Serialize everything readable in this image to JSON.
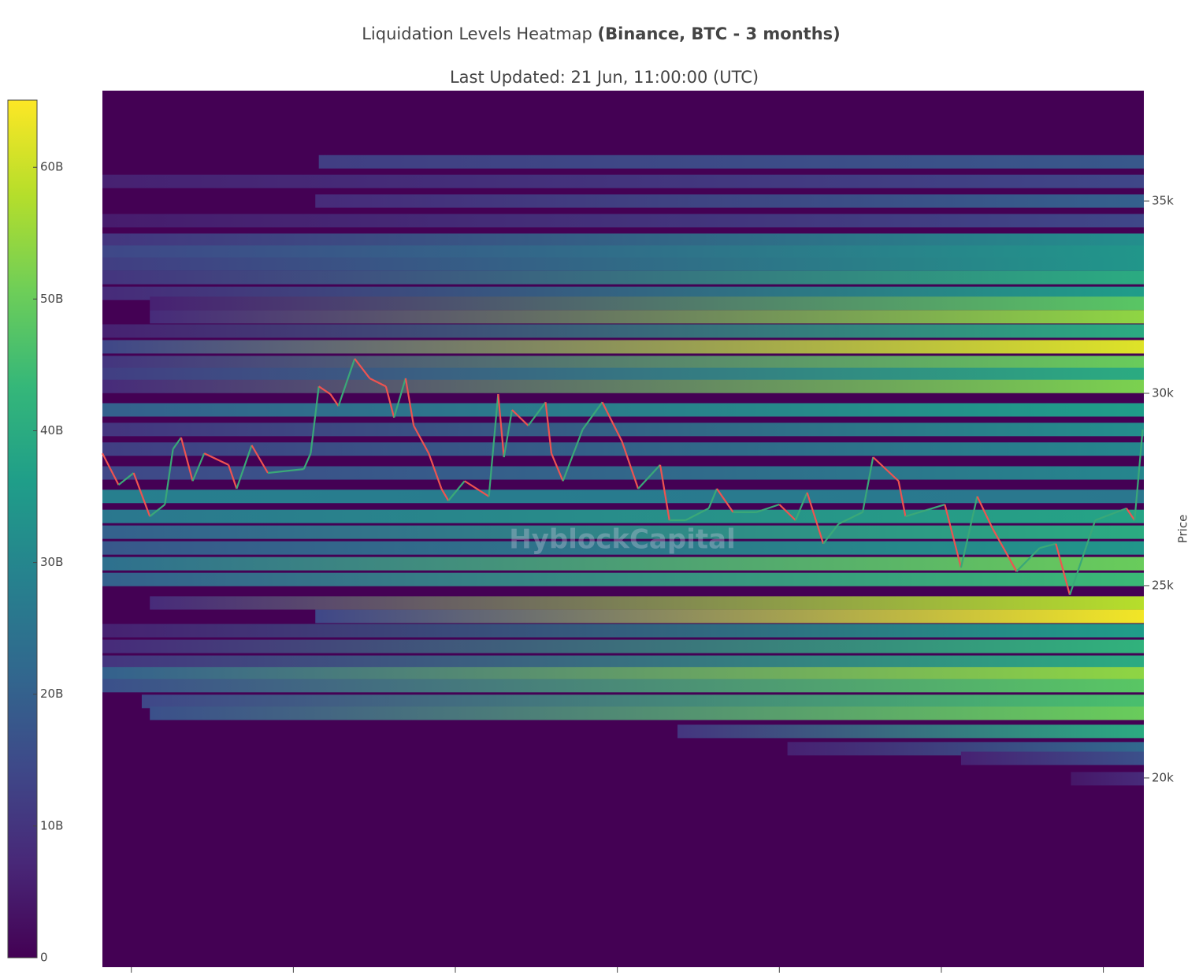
{
  "chart_data": {
    "type": "heatmap",
    "title": "Liquidation Levels Heatmap ",
    "title_bold": "(Binance, BTC - 3 months)",
    "subtitle": "Last Updated: 21 Jun, 11:00:00 (UTC)",
    "ylabel": "Price",
    "watermark": "HyblockCapital",
    "xlim": [
      0,
      90
    ],
    "xticks": [
      2.5,
      16.5,
      30.5,
      44.5,
      58.5,
      72.5,
      86.5
    ],
    "ylim": [
      15080,
      37870
    ],
    "yticks": [
      {
        "value": 20000,
        "label": "20k"
      },
      {
        "value": 25000,
        "label": "25k"
      },
      {
        "value": 30000,
        "label": "30k"
      },
      {
        "value": 35000,
        "label": "35k"
      }
    ],
    "clim": [
      0,
      65.1
    ],
    "cticks": [
      0,
      {
        "value": 10,
        "label": "10B"
      },
      {
        "value": 20,
        "label": "20B"
      },
      {
        "value": 30,
        "label": "30B"
      },
      {
        "value": 40,
        "label": "40B"
      },
      {
        "value": 50,
        "label": "50B"
      },
      {
        "value": 60,
        "label": "60B"
      }
    ],
    "bands": [
      {
        "price": 36020,
        "start": 18.7,
        "values": [
          12,
          18
        ]
      },
      {
        "price": 35510,
        "start": 0,
        "values": [
          6,
          14
        ]
      },
      {
        "price": 35000,
        "start": 18.4,
        "values": [
          8,
          20
        ]
      },
      {
        "price": 34490,
        "start": 0,
        "values": [
          5,
          14
        ]
      },
      {
        "price": 33980,
        "start": 0,
        "values": [
          10,
          32
        ]
      },
      {
        "price": 33670,
        "start": 0,
        "values": [
          14,
          34
        ]
      },
      {
        "price": 33360,
        "start": 0,
        "values": [
          12,
          34
        ]
      },
      {
        "price": 33010,
        "start": 0,
        "values": [
          10,
          40
        ]
      },
      {
        "price": 32600,
        "start": 0,
        "values": [
          8,
          36
        ]
      },
      {
        "price": 32340,
        "start": 4.1,
        "values": [
          6,
          48
        ]
      },
      {
        "price": 31990,
        "start": 4.1,
        "values": [
          8,
          54
        ]
      },
      {
        "price": 31620,
        "start": 0,
        "values": [
          6,
          40
        ]
      },
      {
        "price": 31210,
        "start": 0,
        "values": [
          14,
          62
        ]
      },
      {
        "price": 30800,
        "start": 0,
        "values": [
          10,
          50
        ]
      },
      {
        "price": 30490,
        "start": 0,
        "values": [
          12,
          40
        ]
      },
      {
        "price": 30180,
        "start": 0,
        "values": [
          8,
          52
        ]
      },
      {
        "price": 29570,
        "start": 0,
        "values": [
          20,
          36
        ]
      },
      {
        "price": 29060,
        "start": 0,
        "values": [
          10,
          32
        ]
      },
      {
        "price": 28550,
        "start": 0,
        "values": [
          12,
          30
        ]
      },
      {
        "price": 27930,
        "start": 0,
        "values": [
          14,
          30
        ]
      },
      {
        "price": 27320,
        "start": 0,
        "values": [
          28,
          26
        ]
      },
      {
        "price": 26800,
        "start": 0,
        "values": [
          26,
          38
        ]
      },
      {
        "price": 26390,
        "start": 0,
        "values": [
          20,
          40
        ]
      },
      {
        "price": 25980,
        "start": 0,
        "values": [
          18,
          34
        ]
      },
      {
        "price": 25570,
        "start": 0,
        "values": [
          24,
          50
        ]
      },
      {
        "price": 25160,
        "start": 0,
        "values": [
          20,
          44
        ]
      },
      {
        "price": 24550,
        "start": 4.1,
        "values": [
          8,
          58
        ]
      },
      {
        "price": 24200,
        "start": 18.4,
        "values": [
          14,
          64
        ]
      },
      {
        "price": 23830,
        "start": 0,
        "values": [
          6,
          36
        ]
      },
      {
        "price": 23420,
        "start": 0,
        "values": [
          8,
          42
        ]
      },
      {
        "price": 23010,
        "start": 0,
        "values": [
          10,
          40
        ]
      },
      {
        "price": 22710,
        "start": 0,
        "values": [
          20,
          54
        ]
      },
      {
        "price": 22400,
        "start": 0,
        "values": [
          16,
          48
        ]
      },
      {
        "price": 21990,
        "start": 3.4,
        "values": [
          14,
          46
        ]
      },
      {
        "price": 21680,
        "start": 4.1,
        "values": [
          16,
          50
        ]
      },
      {
        "price": 21210,
        "start": 49.7,
        "values": [
          10,
          40
        ]
      },
      {
        "price": 20760,
        "start": 59.2,
        "values": [
          6,
          22
        ]
      },
      {
        "price": 20510,
        "start": 74.2,
        "values": [
          6,
          16
        ]
      },
      {
        "price": 19980,
        "start": 83.7,
        "values": [
          4,
          8
        ]
      }
    ],
    "price_line": {
      "x": [
        0,
        1.4,
        2.7,
        4.1,
        5.4,
        6.1,
        6.8,
        7.8,
        8.8,
        10.9,
        11.6,
        12.9,
        14.3,
        17.4,
        18.0,
        18.7,
        19.7,
        20.4,
        21.8,
        23.1,
        24.5,
        25.2,
        26.2,
        26.9,
        28.2,
        29.3,
        29.9,
        31.3,
        33.4,
        34.2,
        34.7,
        35.4,
        36.8,
        38.3,
        38.8,
        39.8,
        41.5,
        43.2,
        44.9,
        46.3,
        48.2,
        49.0,
        50.4,
        52.4,
        53.1,
        54.5,
        56.5,
        58.5,
        59.9,
        60.9,
        62.3,
        63.6,
        65.7,
        66.6,
        68.8,
        69.4,
        72.8,
        74.2,
        75.6,
        76.9,
        79.0,
        81.0,
        82.4,
        83.6,
        85.8,
        88.5,
        89.2,
        89.9
      ],
      "values": [
        28440,
        27620,
        27930,
        26800,
        27110,
        28550,
        28850,
        27720,
        28440,
        28140,
        27520,
        28650,
        27930,
        28030,
        28440,
        30180,
        29980,
        29670,
        30900,
        30390,
        30180,
        29370,
        30390,
        29160,
        28440,
        27520,
        27210,
        27720,
        27320,
        29980,
        28340,
        29570,
        29160,
        29770,
        28440,
        27720,
        29060,
        29770,
        28750,
        27520,
        28140,
        26700,
        26700,
        27010,
        27520,
        26910,
        26910,
        27110,
        26700,
        27420,
        26090,
        26600,
        26910,
        28340,
        27720,
        26800,
        27110,
        25470,
        27320,
        26500,
        25370,
        25980,
        26090,
        24760,
        26700,
        27010,
        26700,
        29060
      ],
      "up_color": "#3aa878",
      "down_color": "#ef5350"
    }
  }
}
